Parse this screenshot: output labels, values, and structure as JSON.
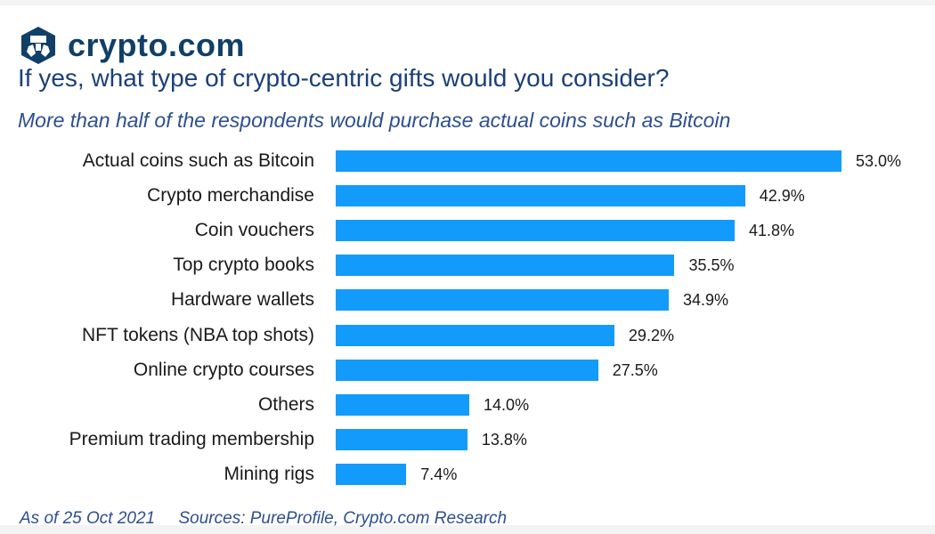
{
  "brand": {
    "name": "crypto.com",
    "color": "#103f68"
  },
  "chart_data": {
    "type": "bar",
    "orientation": "horizontal",
    "title": "If yes, what type of crypto-centric gifts would you consider?",
    "subtitle": "More than half of the respondents would purchase actual coins such as Bitcoin",
    "categories": [
      "Actual coins such as Bitcoin",
      "Crypto merchandise",
      "Coin vouchers",
      "Top crypto books",
      "Hardware wallets",
      "NFT tokens (NBA top shots)",
      "Online crypto courses",
      "Others",
      "Premium trading membership",
      "Mining rigs"
    ],
    "values": [
      53.0,
      42.9,
      41.8,
      35.5,
      34.9,
      29.2,
      27.5,
      14.0,
      13.8,
      7.4
    ],
    "labels": [
      "53.0%",
      "42.9%",
      "41.8%",
      "35.5%",
      "34.9%",
      "29.2%",
      "27.5%",
      "14.0%",
      "13.8%",
      "7.4%"
    ],
    "unit": "%",
    "bar_color": "#139bfb",
    "grid": false,
    "legend": null
  },
  "footer": {
    "date": "As of 25 Oct 2021",
    "sources": "Sources: PureProfile, Crypto.com Research"
  }
}
